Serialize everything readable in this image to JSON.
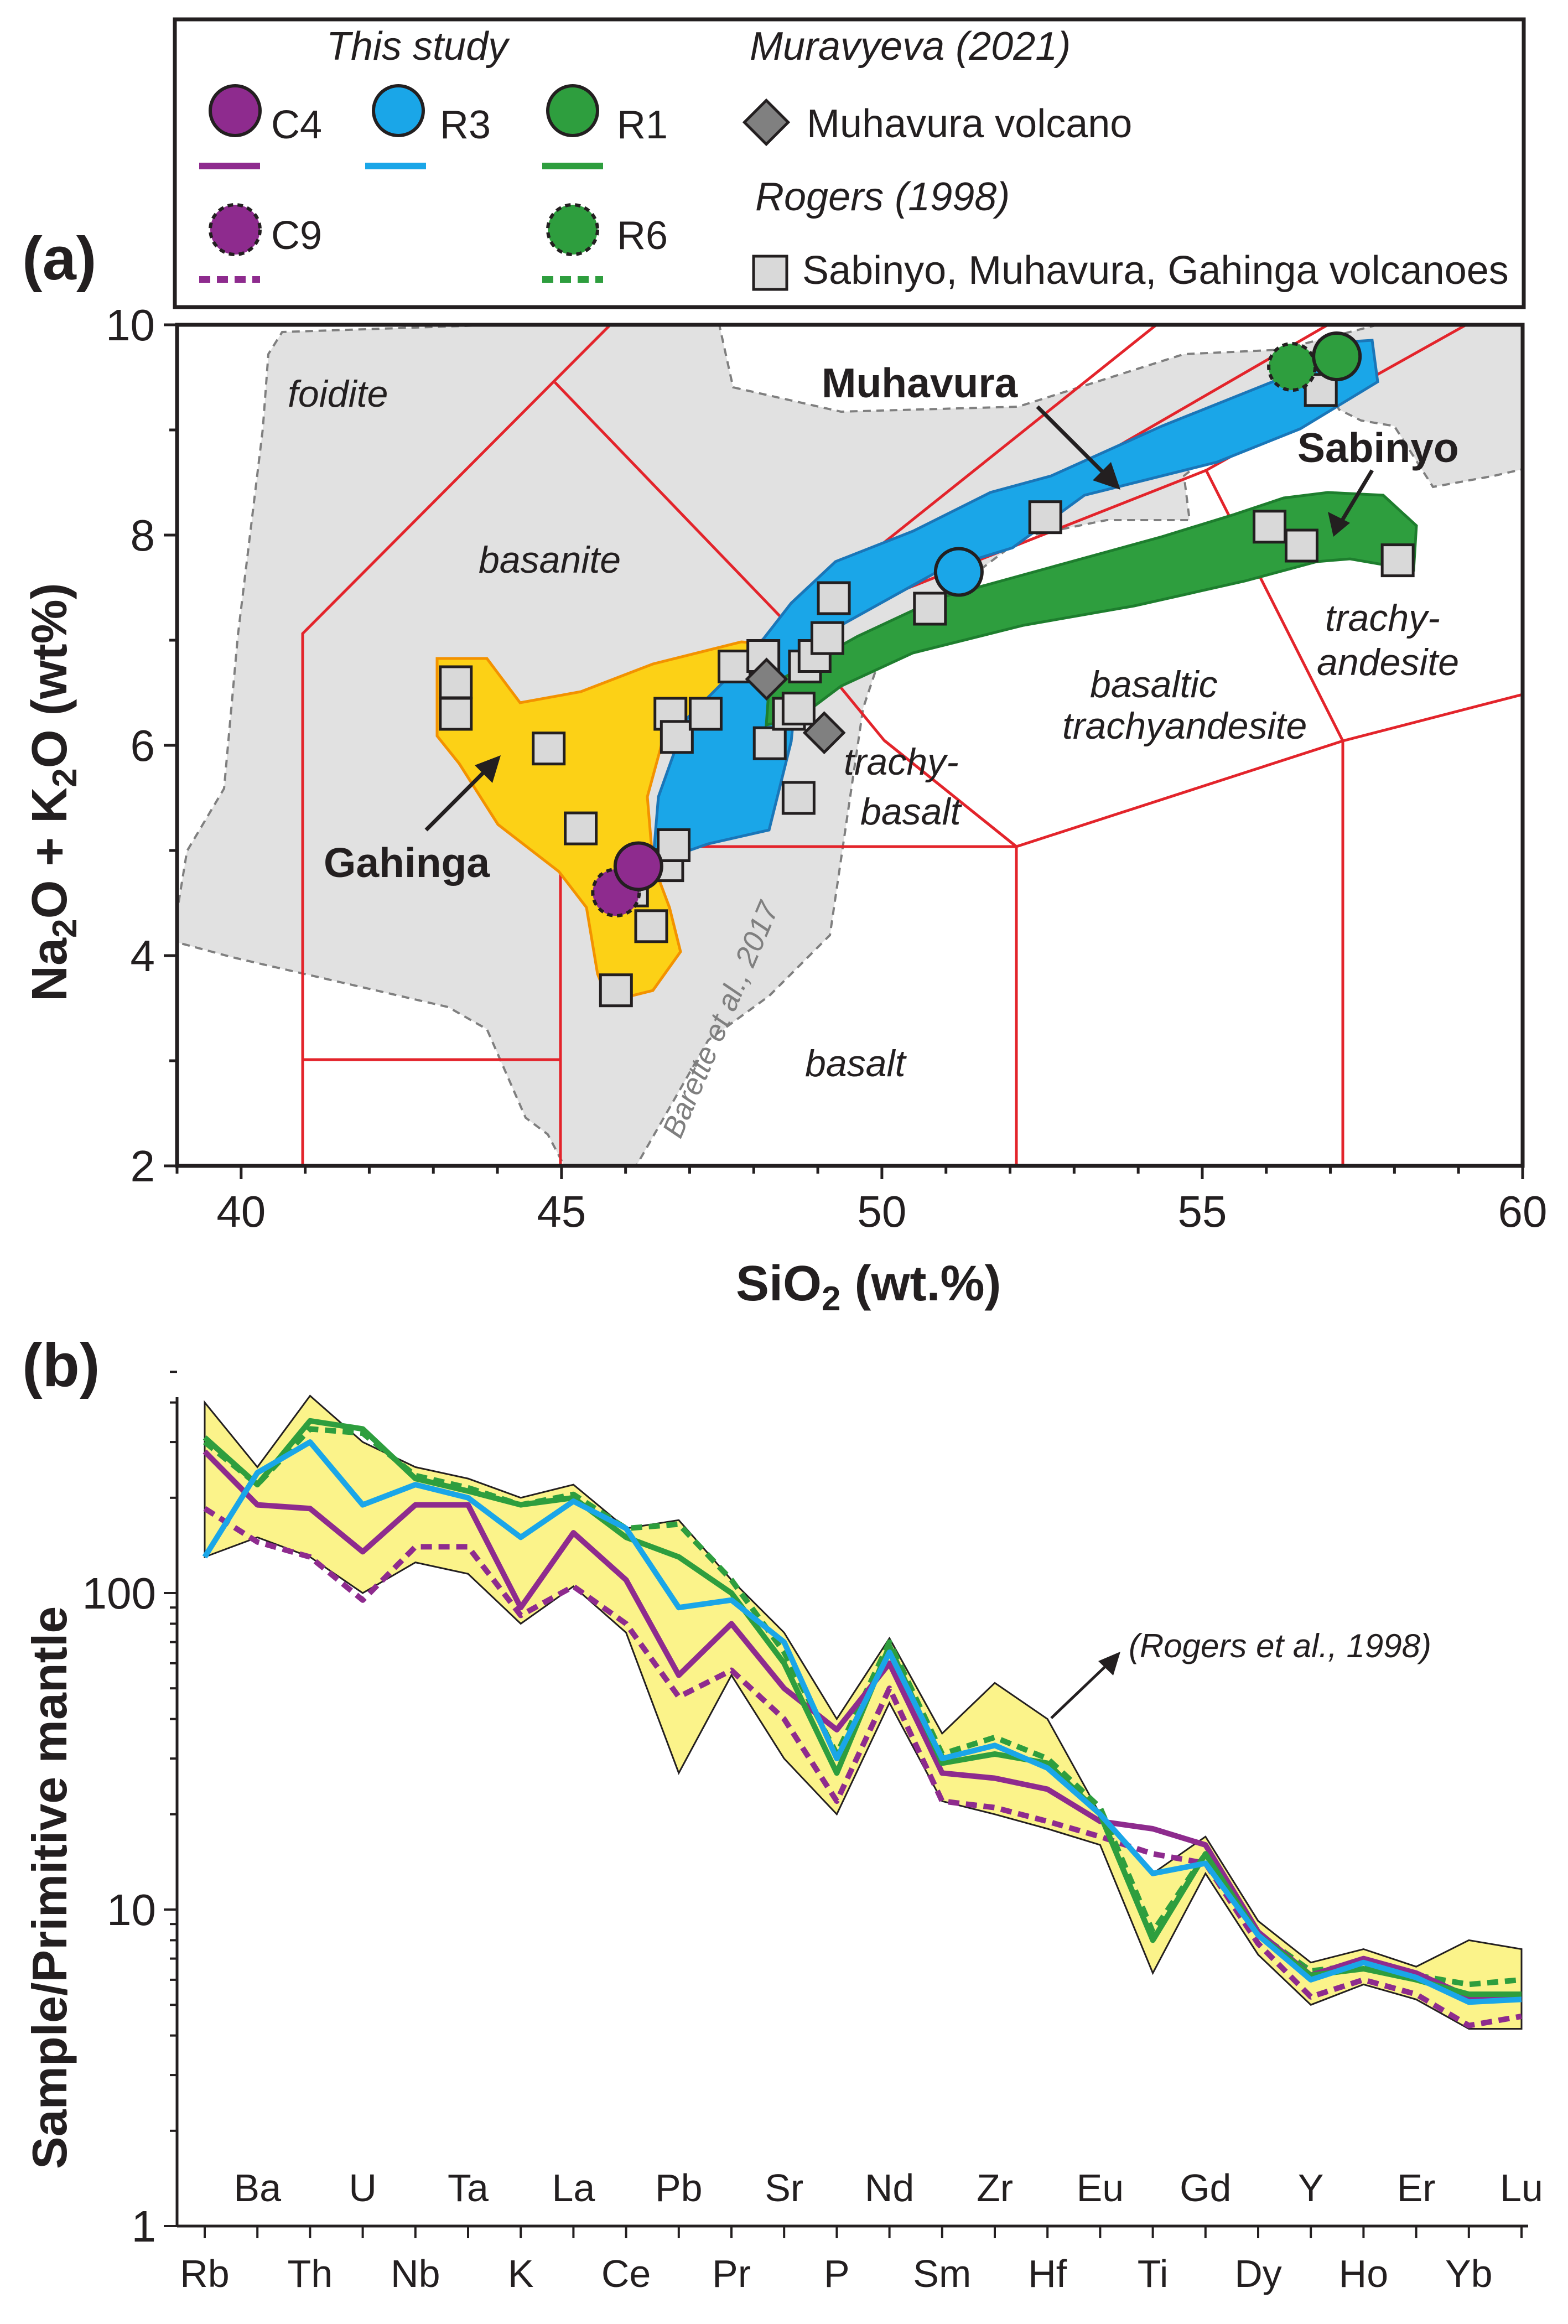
{
  "figure": {
    "panel_a_label": "(a)",
    "panel_b_label": "(b)"
  },
  "legend": {
    "this_study": "This study",
    "muravyeva": "Muravyeva (2021)",
    "rogers": "Rogers (1998)",
    "entries": {
      "C4": "C4",
      "R3": "R3",
      "R1": "R1",
      "C9": "C9",
      "R6": "R6",
      "muhavura_volcano": "Muhavura volcano",
      "rogers_samples": "Sabinyo, Muhavura, Gahinga volcanoes"
    },
    "colors": {
      "C4": "#8e2b8e",
      "C9": "#8e2b8e",
      "R3": "#1aa6e8",
      "R1": "#2e9e3e",
      "R6": "#2e9e3e",
      "diamond": "#808080",
      "square": "#d9d9d9"
    }
  },
  "chart_data": [
    {
      "type": "scatter",
      "name": "TAS diagram",
      "xlabel": "SiO2 (wt.%)",
      "ylabel": "Na2O + K2O  (wt%)",
      "xlim": [
        39,
        60
      ],
      "ylim": [
        2,
        10
      ],
      "xticks": [
        40,
        45,
        50,
        55,
        60
      ],
      "yticks": [
        2,
        4,
        6,
        8,
        10
      ],
      "field_labels": {
        "foidite": "foidite",
        "basanite": "basanite",
        "basalt": "basalt",
        "trachybasalt_1": "trachy-",
        "trachybasalt_2": "basalt",
        "basaltic_trachyandesite_1": "basaltic",
        "basaltic_trachyandesite_2": "trachyandesite",
        "trachyandesite_1": "trachy-",
        "trachyandesite_2": "andesite"
      },
      "annotations": {
        "muhavura": "Muhavura",
        "sabinyo": "Sabinyo",
        "gahinga": "Gahinga",
        "barette": "Barette et al., 2017"
      },
      "series": [
        {
          "name": "C4",
          "x": [
            46.2
          ],
          "y": [
            4.85
          ]
        },
        {
          "name": "C9",
          "x": [
            45.85
          ],
          "y": [
            4.6
          ]
        },
        {
          "name": "R3",
          "x": [
            51.2
          ],
          "y": [
            7.65
          ]
        },
        {
          "name": "R1",
          "x": [
            57.1
          ],
          "y": [
            9.7
          ]
        },
        {
          "name": "R6",
          "x": [
            56.4
          ],
          "y": [
            9.6
          ]
        },
        {
          "name": "Muhavura volcano (Muravyeva 2021)",
          "x": [
            48.2,
            49.1
          ],
          "y": [
            6.63,
            6.12
          ]
        },
        {
          "name": "Sabinyo, Muhavura, Gahinga volcanoes (Rogers 1998)",
          "x": [
            43.35,
            43.35,
            44.8,
            45.3,
            45.85,
            45.85,
            46.1,
            46.4,
            46.65,
            46.7,
            46.75,
            46.8,
            47.25,
            47.7,
            48.15,
            48.25,
            48.55,
            48.7,
            48.7,
            48.8,
            48.95,
            49.15,
            49.25,
            50.75,
            52.55,
            56.05,
            56.55,
            56.85,
            58.05
          ],
          "y": [
            6.6,
            6.3,
            5.97,
            5.21,
            3.67,
            4.62,
            4.62,
            4.28,
            4.86,
            6.3,
            5.05,
            6.08,
            6.3,
            6.75,
            6.85,
            6.02,
            6.3,
            6.35,
            5.5,
            6.75,
            6.85,
            7.02,
            7.4,
            7.3,
            8.17,
            8.08,
            7.9,
            9.38,
            7.76
          ]
        }
      ]
    },
    {
      "type": "line",
      "name": "Primitive-mantle normalized spider diagram",
      "ylabel": "Sample/Primitive mantle",
      "yscale": "log",
      "ylim": [
        1,
        500
      ],
      "yticks": [
        1,
        10,
        100
      ],
      "categories": [
        "Rb",
        "Ba",
        "Th",
        "U",
        "Nb",
        "Ta",
        "K",
        "La",
        "Ce",
        "Pb",
        "Pr",
        "Sr",
        "P",
        "Nd",
        "Sm",
        "Zr",
        "Hf",
        "Eu",
        "Ti",
        "Gd",
        "Dy",
        "Y",
        "Ho",
        "Er",
        "Yb",
        "Lu"
      ],
      "bottom_labels": [
        "Rb",
        "Th",
        "Nb",
        "K",
        "Ce",
        "Pr",
        "P",
        "Sm",
        "Hf",
        "Ti",
        "Dy",
        "Ho",
        "Yb"
      ],
      "top_labels": [
        "Ba",
        "U",
        "Ta",
        "La",
        "Pb",
        "Sr",
        "Nd",
        "Zr",
        "Eu",
        "Gd",
        "Y",
        "Er",
        "Lu"
      ],
      "annotation": "(Rogers et al., 1998)",
      "series": [
        {
          "name": "C4",
          "values": [
            280,
            190,
            185,
            135,
            190,
            190,
            90,
            155,
            110,
            55,
            80,
            50,
            37,
            60,
            27,
            26,
            24,
            19,
            18,
            16,
            8.5,
            6.2,
            7.0,
            6.3,
            5.3,
            5.2
          ]
        },
        {
          "name": "C9",
          "values": [
            185,
            145,
            130,
            95,
            140,
            140,
            85,
            105,
            80,
            47,
            57,
            40,
            22,
            50,
            22,
            21,
            19,
            17,
            15,
            14,
            7.8,
            5.3,
            6.0,
            5.4,
            4.3,
            4.6
          ]
        },
        {
          "name": "R3",
          "values": [
            130,
            240,
            300,
            190,
            220,
            200,
            150,
            195,
            160,
            90,
            95,
            70,
            30,
            65,
            30,
            33,
            28,
            20,
            13,
            14,
            8.3,
            6.0,
            6.8,
            6.1,
            5.1,
            5.2
          ]
        },
        {
          "name": "R1",
          "values": [
            310,
            220,
            350,
            330,
            230,
            210,
            190,
            200,
            150,
            130,
            100,
            60,
            27,
            68,
            29,
            31,
            29,
            20,
            8,
            15,
            8.3,
            6.2,
            6.5,
            6.0,
            5.4,
            5.4
          ]
        },
        {
          "name": "R6",
          "values": [
            300,
            220,
            330,
            320,
            235,
            215,
            190,
            205,
            160,
            165,
            110,
            65,
            31,
            70,
            31,
            35,
            30,
            21,
            8.5,
            15,
            8.4,
            6.4,
            6.7,
            6.2,
            5.8,
            6.0
          ]
        }
      ],
      "range_upper": [
        400,
        250,
        420,
        300,
        250,
        230,
        200,
        220,
        160,
        170,
        110,
        75,
        40,
        72,
        36,
        52,
        40,
        20,
        13,
        17,
        9.2,
        6.8,
        7.5,
        6.6,
        8.0,
        7.5
      ],
      "range_lower": [
        130,
        150,
        130,
        100,
        125,
        115,
        80,
        105,
        75,
        27,
        55,
        30,
        20,
        45,
        22,
        20,
        18,
        16,
        6.3,
        13,
        7.2,
        5.0,
        5.8,
        5.2,
        4.2,
        4.2
      ]
    }
  ]
}
